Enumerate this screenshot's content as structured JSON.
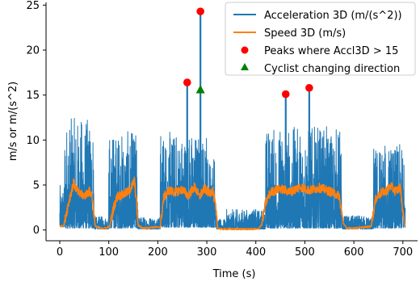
{
  "chart_data": {
    "type": "line",
    "xlabel": "Time (s)",
    "ylabel": "m/s or m/(s^2)",
    "xlim": [
      -28,
      730
    ],
    "ylim": [
      -1.2,
      25.3
    ],
    "x_ticks": [
      0,
      100,
      200,
      300,
      400,
      500,
      600,
      700
    ],
    "y_ticks": [
      0,
      5,
      10,
      15,
      20,
      25
    ],
    "grid": false,
    "legend_position": "top-right",
    "colors": {
      "acceleration": "#1f77b4",
      "speed": "#ff7f0e",
      "peaks": "#ff0000",
      "direction": "#008000"
    },
    "series": [
      {
        "name": "Acceleration 3D (m/(s^2))",
        "kind": "line",
        "color": "#1f77b4",
        "segments": [
          {
            "x_start": 0,
            "x_end": 10,
            "low": 0.3,
            "high": 5
          },
          {
            "x_start": 10,
            "x_end": 70,
            "low": 0.2,
            "high": 12.5
          },
          {
            "x_start": 70,
            "x_end": 100,
            "low": 0.1,
            "high": 1.5
          },
          {
            "x_start": 100,
            "x_end": 160,
            "low": 0.2,
            "high": 11
          },
          {
            "x_start": 160,
            "x_end": 205,
            "low": 0.1,
            "high": 1.5
          },
          {
            "x_start": 205,
            "x_end": 300,
            "low": 0.3,
            "high": 11
          },
          {
            "x_start": 300,
            "x_end": 320,
            "low": 0.3,
            "high": 9
          },
          {
            "x_start": 320,
            "x_end": 340,
            "low": 0.1,
            "high": 1.2
          },
          {
            "x_start": 340,
            "x_end": 420,
            "low": 0.1,
            "high": 2.3
          },
          {
            "x_start": 420,
            "x_end": 575,
            "low": 0.2,
            "high": 11.5
          },
          {
            "x_start": 575,
            "x_end": 640,
            "low": 0.1,
            "high": 1.6
          },
          {
            "x_start": 640,
            "x_end": 705,
            "low": 0.2,
            "high": 9.5
          }
        ],
        "spikes": [
          {
            "x": 260,
            "y": 16.4
          },
          {
            "x": 287,
            "y": 24.3
          },
          {
            "x": 461,
            "y": 15.1
          },
          {
            "x": 509,
            "y": 15.8
          }
        ]
      },
      {
        "name": "Speed 3D (m/s)",
        "kind": "line",
        "color": "#ff7f0e",
        "x": [
          0,
          8,
          12,
          20,
          28,
          38,
          50,
          60,
          66,
          72,
          80,
          95,
          102,
          110,
          118,
          128,
          138,
          146,
          152,
          156,
          160,
          170,
          190,
          205,
          212,
          222,
          235,
          250,
          262,
          275,
          285,
          295,
          305,
          312,
          318,
          322,
          330,
          350,
          380,
          405,
          412,
          420,
          430,
          450,
          470,
          490,
          510,
          530,
          555,
          570,
          578,
          585,
          600,
          620,
          635,
          645,
          655,
          665,
          675,
          685,
          695,
          700,
          704
        ],
        "y": [
          0.4,
          0.5,
          1.5,
          3.5,
          5.2,
          4.1,
          3.8,
          4.3,
          3.8,
          0.5,
          0.2,
          0.2,
          0.4,
          2.5,
          3.8,
          3.9,
          4.2,
          4.7,
          5.5,
          3.5,
          0.5,
          0.2,
          0.3,
          0.3,
          3.6,
          4.4,
          4.2,
          4.5,
          3.8,
          4.8,
          3.7,
          4.6,
          4.1,
          4.4,
          2.5,
          0.2,
          0.1,
          0.1,
          0.1,
          0.1,
          0.6,
          3.0,
          4.2,
          4.6,
          4.2,
          4.8,
          4.4,
          4.7,
          4.2,
          3.8,
          0.8,
          0.2,
          0.2,
          0.3,
          0.4,
          3.5,
          4.1,
          4.3,
          4.9,
          4.3,
          4.7,
          2.0,
          0.3
        ]
      },
      {
        "name": "Peaks where Accl3D > 15",
        "kind": "scatter",
        "marker": "circle",
        "color": "#ff0000",
        "x": [
          260,
          287,
          461,
          509
        ],
        "y": [
          16.4,
          24.3,
          15.1,
          15.8
        ]
      },
      {
        "name": "Cyclist changing direction",
        "kind": "scatter",
        "marker": "triangle",
        "color": "#008000",
        "x": [
          287
        ],
        "y": [
          15.6
        ]
      }
    ]
  }
}
